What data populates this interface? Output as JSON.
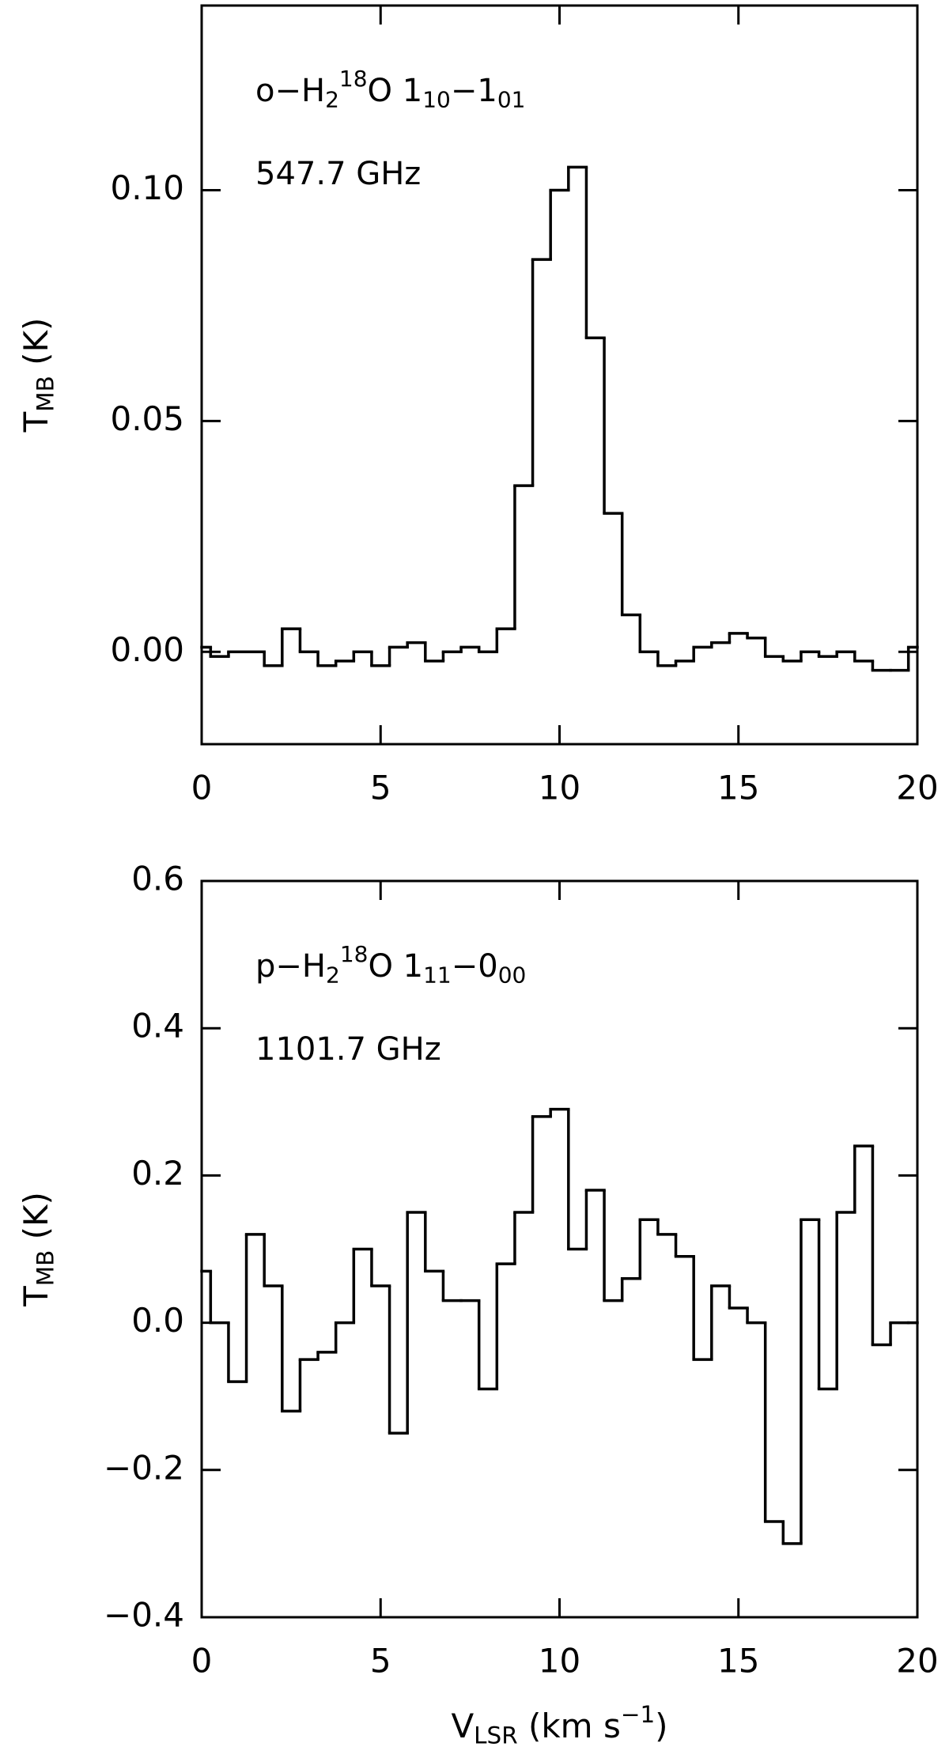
{
  "chart_data": [
    {
      "type": "step",
      "annotations": [
        [
          {
            "text": "o−H"
          },
          {
            "text": "2",
            "shift": "sub"
          },
          {
            "text": "18",
            "shift": "sup"
          },
          {
            "text": "O 1"
          },
          {
            "text": "10",
            "shift": "sub"
          },
          {
            "text": "−1"
          },
          {
            "text": "01",
            "shift": "sub"
          }
        ],
        [
          {
            "text": "547.7 GHz"
          }
        ]
      ],
      "ylabel": [
        {
          "text": "T"
        },
        {
          "text": "MB",
          "shift": "sub"
        },
        {
          "text": " (K)"
        }
      ],
      "x": [
        0,
        0.5,
        1,
        1.5,
        2,
        2.5,
        3,
        3.5,
        4,
        4.5,
        5,
        5.5,
        6,
        6.5,
        7,
        7.5,
        8,
        8.5,
        9,
        9.5,
        10,
        10.5,
        11,
        11.5,
        12,
        12.5,
        13,
        13.5,
        14,
        14.5,
        15,
        15.5,
        16,
        16.5,
        17,
        17.5,
        18,
        18.5,
        19,
        19.5,
        20
      ],
      "values": [
        0.001,
        -0.001,
        0.0,
        0.0,
        -0.003,
        0.005,
        0.0,
        -0.003,
        -0.002,
        0.0,
        -0.003,
        0.001,
        0.002,
        -0.002,
        0.0,
        0.001,
        0.0,
        0.005,
        0.036,
        0.085,
        0.1,
        0.105,
        0.068,
        0.03,
        0.008,
        0.0,
        -0.003,
        -0.002,
        0.001,
        0.002,
        0.004,
        0.003,
        -0.001,
        -0.002,
        0.0,
        -0.001,
        0.0,
        -0.002,
        -0.004,
        -0.004,
        0.001
      ],
      "color": "#000000",
      "xlim": [
        0,
        20
      ],
      "xticks": [
        0,
        5,
        10,
        15,
        20
      ],
      "ylim": [
        -0.02,
        0.14
      ],
      "yticks": [
        {
          "value": 0,
          "label": "0.00"
        },
        0.05,
        {
          "value": 0.1,
          "label": "0.10"
        }
      ]
    },
    {
      "type": "step",
      "annotations": [
        [
          {
            "text": "p−H"
          },
          {
            "text": "2",
            "shift": "sub"
          },
          {
            "text": "18",
            "shift": "sup"
          },
          {
            "text": "O 1"
          },
          {
            "text": "11",
            "shift": "sub"
          },
          {
            "text": "−0"
          },
          {
            "text": "00",
            "shift": "sub"
          }
        ],
        [
          {
            "text": "1101.7 GHz"
          }
        ]
      ],
      "ylabel": [
        {
          "text": "T"
        },
        {
          "text": "MB",
          "shift": "sub"
        },
        {
          "text": " (K)"
        }
      ],
      "xlabel": [
        {
          "text": "V"
        },
        {
          "text": "LSR",
          "shift": "sub"
        },
        {
          "text": " (km s"
        },
        {
          "text": "−1",
          "shift": "sup"
        },
        {
          "text": ")"
        }
      ],
      "x": [
        0,
        0.5,
        1,
        1.5,
        2,
        2.5,
        3,
        3.5,
        4,
        4.5,
        5,
        5.5,
        6,
        6.5,
        7,
        7.5,
        8,
        8.5,
        9,
        9.5,
        10,
        10.5,
        11,
        11.5,
        12,
        12.5,
        13,
        13.5,
        14,
        14.5,
        15,
        15.5,
        16,
        16.5,
        17,
        17.5,
        18,
        18.5,
        19,
        19.5,
        20
      ],
      "values": [
        0.07,
        0.0,
        -0.08,
        0.12,
        0.05,
        -0.12,
        -0.05,
        -0.04,
        0.0,
        0.1,
        0.05,
        -0.15,
        0.15,
        0.07,
        0.03,
        0.03,
        -0.09,
        0.08,
        0.15,
        0.28,
        0.29,
        0.1,
        0.18,
        0.03,
        0.06,
        0.14,
        0.12,
        0.09,
        -0.05,
        0.05,
        0.02,
        0.0,
        -0.27,
        -0.3,
        0.14,
        -0.09,
        0.15,
        0.24,
        -0.03,
        0.0,
        0.0
      ],
      "color": "#000000",
      "xlim": [
        0,
        20
      ],
      "xticks": [
        0,
        5,
        10,
        15,
        20
      ],
      "ylim": [
        -0.4,
        0.6
      ],
      "yticks": [
        {
          "value": -0.4,
          "label": "−0.4"
        },
        {
          "value": -0.2,
          "label": "−0.2"
        },
        {
          "value": 0,
          "label": "0.0"
        },
        0.2,
        0.4,
        0.6
      ]
    }
  ]
}
